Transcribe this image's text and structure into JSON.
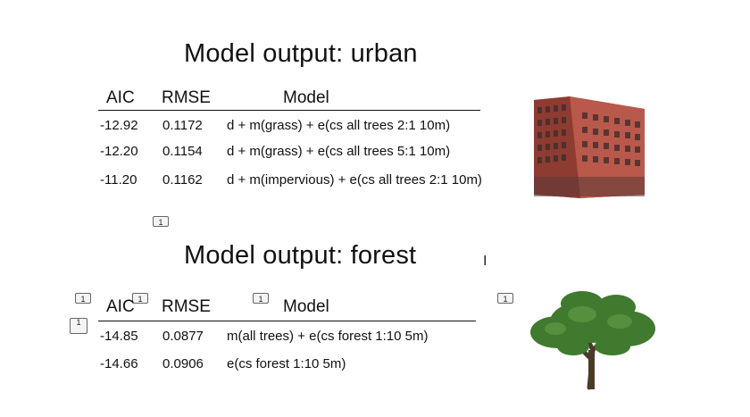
{
  "urban": {
    "title": "Model output: urban",
    "headers": {
      "aic": "AIC",
      "rmse": "RMSE",
      "model": "Model"
    },
    "rows": [
      {
        "aic": "-12.92",
        "rmse": "0.1172",
        "model": "d + m(grass) + e(cs all trees 2:1 10m)"
      },
      {
        "aic": "-12.20",
        "rmse": "0.1154",
        "model": "d + m(grass) + e(cs all trees 5:1 10m)"
      },
      {
        "aic": "-11.20",
        "rmse": "0.1162",
        "model": "d + m(impervious) + e(cs all trees 2:1 10m)"
      }
    ]
  },
  "forest": {
    "title": "Model output: forest",
    "headers": {
      "aic": "AIC",
      "rmse": "RMSE",
      "model": "Model"
    },
    "rows": [
      {
        "aic": "-14.85",
        "rmse": "0.0877",
        "model": "m(all trees) + e(cs forest 1:10 5m)"
      },
      {
        "aic": "-14.66",
        "rmse": "0.0906",
        "model": "e(cs forest 1:10 5m)"
      }
    ]
  },
  "markers": {
    "label": "1"
  },
  "cursor": {
    "glyph": "I"
  },
  "colors": {
    "building": "#a8453a",
    "tree": "#3f7a2e",
    "trunk": "#4a3a2a"
  }
}
